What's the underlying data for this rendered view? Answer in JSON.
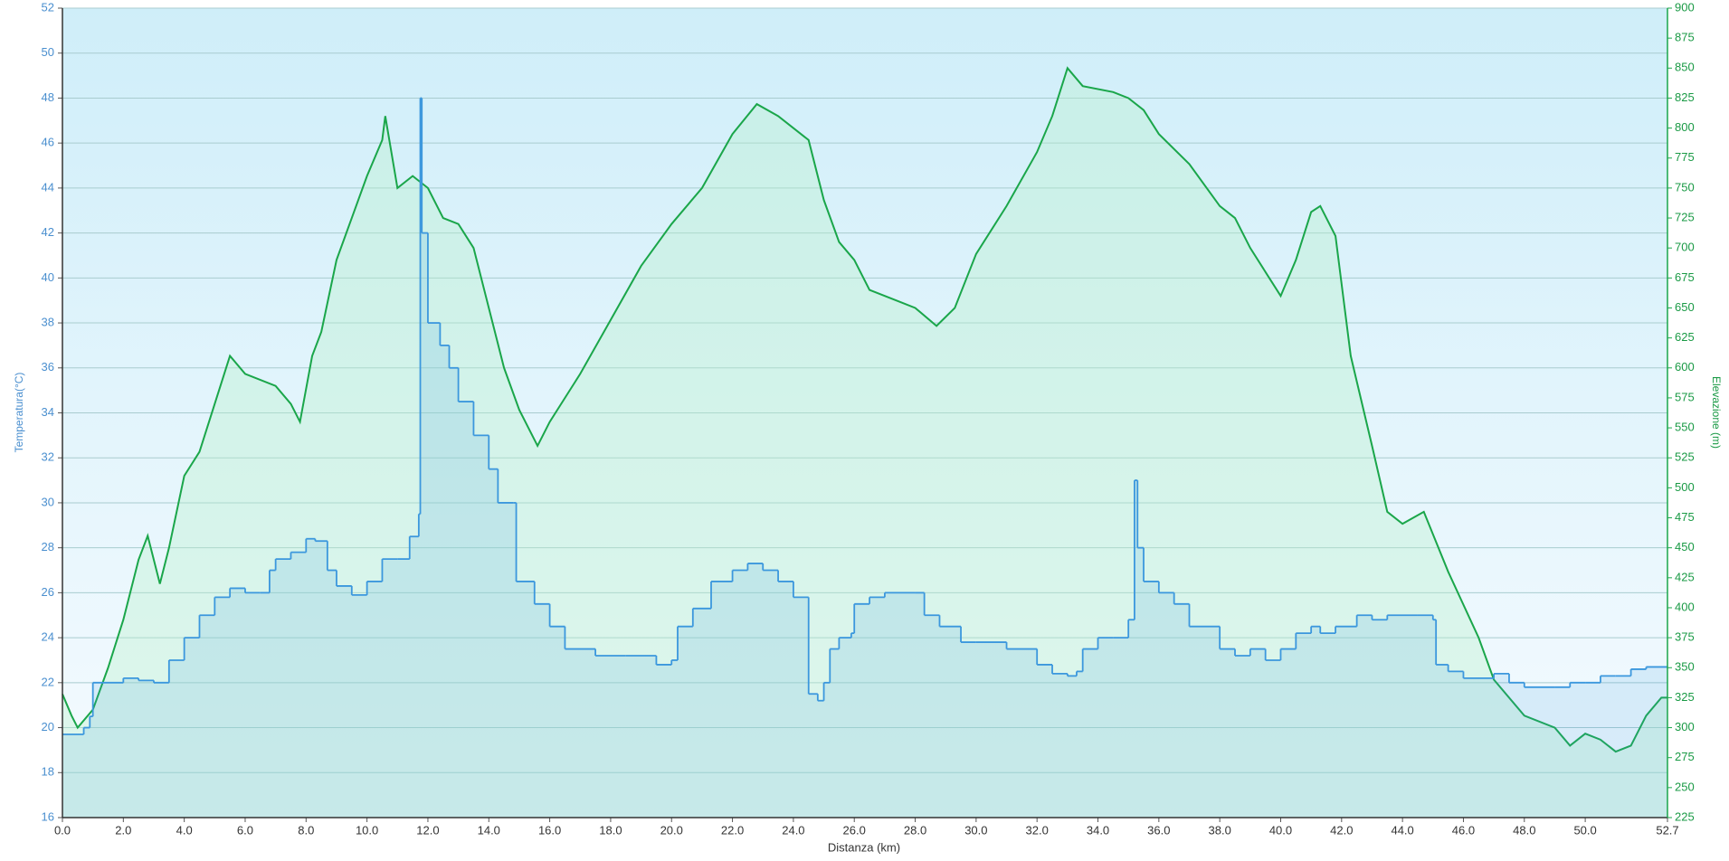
{
  "chart_data": {
    "type": "line",
    "xlabel": "Distanza  (km)",
    "ylabel": "Temperatura(°C)",
    "y2label": "Elevazione (m)",
    "xlim": [
      0,
      52.7
    ],
    "xticks": [
      {
        "value": 0,
        "label": "0.0"
      },
      {
        "value": 2,
        "label": "2.0"
      },
      {
        "value": 4,
        "label": "4.0"
      },
      {
        "value": 6,
        "label": "6.0"
      },
      {
        "value": 8,
        "label": "8.0"
      },
      {
        "value": 10,
        "label": "10.0"
      },
      {
        "value": 12,
        "label": "12.0"
      },
      {
        "value": 14,
        "label": "14.0"
      },
      {
        "value": 16,
        "label": "16.0"
      },
      {
        "value": 18,
        "label": "18.0"
      },
      {
        "value": 20,
        "label": "20.0"
      },
      {
        "value": 22,
        "label": "22.0"
      },
      {
        "value": 24,
        "label": "24.0"
      },
      {
        "value": 26,
        "label": "26.0"
      },
      {
        "value": 28,
        "label": "28.0"
      },
      {
        "value": 30,
        "label": "30.0"
      },
      {
        "value": 32,
        "label": "32.0"
      },
      {
        "value": 34,
        "label": "34.0"
      },
      {
        "value": 36,
        "label": "36.0"
      },
      {
        "value": 38,
        "label": "38.0"
      },
      {
        "value": 40,
        "label": "40.0"
      },
      {
        "value": 42,
        "label": "42.0"
      },
      {
        "value": 44,
        "label": "44.0"
      },
      {
        "value": 46,
        "label": "46.0"
      },
      {
        "value": 48,
        "label": "48.0"
      },
      {
        "value": 50,
        "label": "50.0"
      },
      52.7
    ],
    "ylim": [
      16,
      52
    ],
    "yticks": [
      16,
      18,
      20,
      22,
      24,
      26,
      28,
      30,
      32,
      34,
      36,
      38,
      40,
      42,
      44,
      46,
      48,
      50,
      52
    ],
    "y2lim": [
      225,
      900
    ],
    "y2ticks": [
      225,
      250,
      275,
      300,
      325,
      350,
      375,
      400,
      425,
      450,
      475,
      500,
      525,
      550,
      575,
      600,
      625,
      650,
      675,
      700,
      725,
      750,
      775,
      800,
      825,
      850,
      875,
      900
    ],
    "grid": true,
    "series": [
      {
        "color": "#1aa64a",
        "axis": "y2",
        "x": [
          0,
          0.3,
          0.5,
          1.0,
          1.5,
          2.0,
          2.5,
          2.8,
          3.2,
          3.5,
          4.0,
          4.5,
          5.0,
          5.5,
          6.0,
          7.0,
          7.5,
          7.8,
          8.2,
          8.5,
          9.0,
          9.5,
          10.0,
          10.5,
          10.6,
          11.0,
          11.5,
          12.0,
          12.5,
          13.0,
          13.5,
          14.0,
          14.5,
          15.0,
          15.6,
          16.0,
          17.0,
          18.0,
          19.0,
          20.0,
          21.0,
          22.0,
          22.8,
          23.5,
          24.5,
          25.0,
          25.5,
          26.0,
          26.5,
          27.5,
          28.0,
          28.7,
          29.3,
          30.0,
          31.0,
          32.0,
          32.5,
          33.0,
          33.5,
          34.5,
          35.0,
          35.5,
          36.0,
          37.0,
          38.0,
          38.5,
          39.0,
          40.0,
          40.5,
          41.0,
          41.3,
          41.8,
          42.3,
          43.0,
          43.5,
          44.0,
          44.7,
          45.5,
          46.5,
          47.0,
          48.0,
          49.0,
          49.5,
          50.0,
          50.5,
          51.0,
          51.5,
          52.0,
          52.5,
          52.7
        ],
        "values": [
          328,
          310,
          300,
          315,
          350,
          390,
          440,
          460,
          420,
          450,
          510,
          530,
          570,
          610,
          595,
          585,
          570,
          555,
          610,
          630,
          690,
          725,
          760,
          790,
          810,
          750,
          760,
          750,
          725,
          720,
          700,
          650,
          600,
          565,
          535,
          555,
          595,
          640,
          685,
          720,
          750,
          795,
          820,
          810,
          790,
          740,
          705,
          690,
          665,
          655,
          650,
          635,
          650,
          695,
          735,
          780,
          810,
          850,
          835,
          830,
          825,
          815,
          795,
          770,
          735,
          725,
          700,
          660,
          690,
          730,
          735,
          710,
          610,
          535,
          480,
          470,
          480,
          430,
          375,
          340,
          310,
          300,
          285,
          295,
          290,
          280,
          285,
          310,
          325,
          325
        ]
      },
      {
        "color": "#3b97dd",
        "axis": "y",
        "step": true,
        "x": [
          0,
          0.7,
          0.9,
          1.0,
          2.0,
          2.5,
          3.0,
          3.5,
          4.0,
          4.5,
          5.0,
          5.5,
          6.0,
          6.5,
          6.8,
          7.0,
          7.5,
          8.0,
          8.3,
          8.7,
          9.0,
          9.5,
          10.0,
          10.5,
          11.0,
          11.4,
          11.7,
          11.75,
          11.8,
          12.0,
          12.4,
          12.7,
          13.0,
          13.5,
          14.0,
          14.3,
          14.8,
          14.9,
          15.5,
          16.0,
          16.5,
          17.5,
          18.5,
          19.5,
          20.0,
          20.2,
          20.7,
          21.3,
          22.0,
          22.5,
          23.0,
          23.5,
          24.0,
          24.5,
          24.8,
          25.0,
          25.2,
          25.5,
          25.9,
          26.0,
          26.5,
          27.0,
          28.0,
          28.3,
          28.8,
          29.5,
          30.0,
          31.0,
          32.0,
          32.5,
          33.0,
          33.3,
          33.5,
          34.0,
          34.5,
          35.0,
          35.2,
          35.3,
          35.5,
          36.0,
          36.5,
          37.0,
          38.0,
          38.5,
          39.0,
          39.5,
          40.0,
          40.5,
          41.0,
          41.3,
          41.8,
          42.5,
          43.0,
          43.5,
          44.5,
          45.0,
          45.1,
          45.5,
          46.0,
          47.0,
          47.5,
          48.0,
          49.0,
          49.5,
          50.0,
          50.5,
          51.0,
          51.5,
          52.0,
          52.7
        ],
        "values": [
          19.7,
          20.0,
          20.5,
          22.0,
          22.2,
          22.1,
          22.0,
          23.0,
          24.0,
          25.0,
          25.8,
          26.2,
          26.0,
          26.0,
          27.0,
          27.5,
          27.8,
          28.4,
          28.3,
          27.0,
          26.3,
          25.9,
          26.5,
          27.5,
          27.5,
          28.5,
          29.5,
          48.0,
          42,
          38,
          37,
          36,
          34.5,
          33,
          31.5,
          30,
          30,
          26.5,
          25.5,
          24.5,
          23.5,
          23.2,
          23.2,
          22.8,
          23.0,
          24.5,
          25.3,
          26.5,
          27.0,
          27.3,
          27.0,
          26.5,
          25.8,
          21.5,
          21.2,
          22.0,
          23.5,
          24.0,
          24.2,
          25.5,
          25.8,
          26.0,
          26.0,
          25.0,
          24.5,
          23.8,
          23.8,
          23.5,
          22.8,
          22.4,
          22.3,
          22.5,
          23.5,
          24.0,
          24.0,
          24.8,
          31.0,
          28,
          26.5,
          26.0,
          25.5,
          24.5,
          23.5,
          23.2,
          23.5,
          23.0,
          23.5,
          24.2,
          24.5,
          24.2,
          24.5,
          25.0,
          24.8,
          25.0,
          25.0,
          24.8,
          22.8,
          22.5,
          22.2,
          22.4,
          22.0,
          21.8,
          21.8,
          22.0,
          22.0,
          22.3,
          22.3,
          22.6,
          22.7,
          22.7
        ]
      }
    ]
  }
}
